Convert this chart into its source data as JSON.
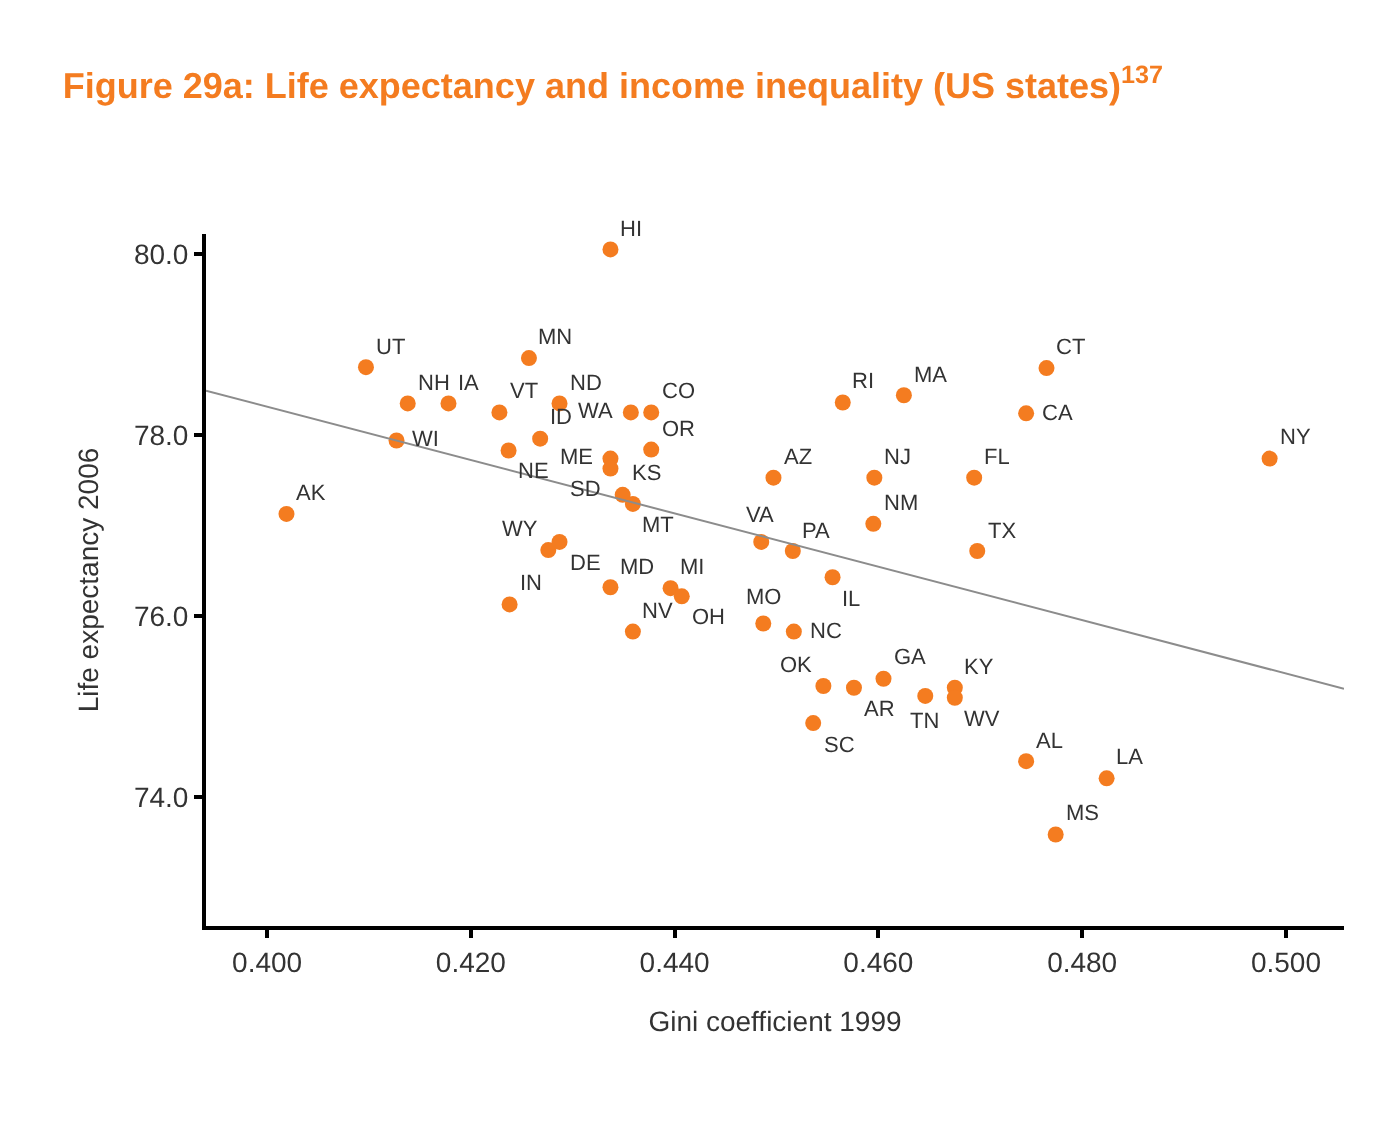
{
  "chart_data": {
    "type": "scatter",
    "title": "Figure 29a: Life expectancy and income inequality (US states)$^{137}$",
    "xlabel": "Gini coefficient 1999",
    "ylabel": "Life expectancy 2006",
    "xlim": [
      0.394,
      0.5057
    ],
    "ylim": [
      72.58,
      80.22
    ],
    "xticks": [
      {
        "value": 0.4,
        "label": "0.400"
      },
      {
        "value": 0.42,
        "label": "0.420"
      },
      {
        "value": 0.44,
        "label": "0.440"
      },
      {
        "value": 0.46,
        "label": "0.460"
      },
      {
        "value": 0.48,
        "label": "0.480"
      },
      {
        "value": 0.5,
        "label": "0.500"
      }
    ],
    "yticks": [
      {
        "value": 74,
        "label": "74.0"
      },
      {
        "value": 76,
        "label": "76.0"
      },
      {
        "value": 78,
        "label": "78.0"
      },
      {
        "value": 80,
        "label": "80.0"
      }
    ],
    "marker": "circle",
    "series": [
      {
        "color": "#f47c20",
        "x": [
          0.4337,
          0.4097,
          0.4257,
          0.4138,
          0.4178,
          0.4228,
          0.4287,
          0.4357,
          0.4377,
          0.4127,
          0.4268,
          0.4237,
          0.4377,
          0.4337,
          0.4337,
          0.4349,
          0.4359,
          0.4019,
          0.4276,
          0.4287,
          0.4337,
          0.4396,
          0.4407,
          0.4238,
          0.4359,
          0.4765,
          0.4745,
          0.4565,
          0.4625,
          0.4984,
          0.4497,
          0.4596,
          0.4694,
          0.4595,
          0.4485,
          0.4516,
          0.4697,
          0.4555,
          0.4487,
          0.4517,
          0.4546,
          0.4576,
          0.4605,
          0.4646,
          0.4675,
          0.4675,
          0.4536,
          0.4745,
          0.4824,
          0.4774
        ],
        "values": [
          80.05,
          78.75,
          78.85,
          78.35,
          78.35,
          78.25,
          78.35,
          78.25,
          78.25,
          77.94,
          77.96,
          77.83,
          77.84,
          77.74,
          77.63,
          77.34,
          77.24,
          77.13,
          76.73,
          76.82,
          76.32,
          76.31,
          76.22,
          76.13,
          75.83,
          78.74,
          78.24,
          78.36,
          78.44,
          77.74,
          77.53,
          77.53,
          77.53,
          77.02,
          76.82,
          76.72,
          76.72,
          76.43,
          75.92,
          75.83,
          75.23,
          75.21,
          75.31,
          75.12,
          75.21,
          75.1,
          74.82,
          74.4,
          74.21,
          73.59
        ]
      },
      {
        "type": "line",
        "marker": "none",
        "color": "#8c8c8c",
        "x": [
          0.394,
          0.5057
        ],
        "values": [
          78.49,
          75.2
        ]
      }
    ],
    "annotations": [
      {
        "text": "HI",
        "x": 0.4337,
        "y": 80.05
      },
      {
        "text": "UT",
        "x": 0.4097,
        "y": 78.75
      },
      {
        "text": "MN",
        "x": 0.4257,
        "y": 78.85
      },
      {
        "text": "NH",
        "x": 0.4138,
        "y": 78.35
      },
      {
        "text": "IA",
        "x": 0.4178,
        "y": 78.35
      },
      {
        "text": "VT",
        "x": 0.4228,
        "y": 78.25
      },
      {
        "text": "ND",
        "x": 0.4287,
        "y": 78.35
      },
      {
        "text": "WA",
        "x": 0.4357,
        "y": 78.25
      },
      {
        "text": "CO",
        "x": 0.4377,
        "y": 78.25
      },
      {
        "text": "WI",
        "x": 0.4127,
        "y": 77.94
      },
      {
        "text": "ID",
        "x": 0.4268,
        "y": 77.96
      },
      {
        "text": "NE",
        "x": 0.4237,
        "y": 77.83
      },
      {
        "text": "OR",
        "x": 0.4377,
        "y": 77.84
      },
      {
        "text": "ME",
        "x": 0.4337,
        "y": 77.74
      },
      {
        "text": "SD",
        "x": 0.4337,
        "y": 77.63
      },
      {
        "text": "KS",
        "x": 0.4349,
        "y": 77.34
      },
      {
        "text": "MT",
        "x": 0.4359,
        "y": 77.24
      },
      {
        "text": "AK",
        "x": 0.4019,
        "y": 77.13
      },
      {
        "text": "WY",
        "x": 0.4276,
        "y": 76.73
      },
      {
        "text": "DE",
        "x": 0.4287,
        "y": 76.82
      },
      {
        "text": "MD",
        "x": 0.4337,
        "y": 76.32
      },
      {
        "text": "MI",
        "x": 0.4396,
        "y": 76.31
      },
      {
        "text": "OH",
        "x": 0.4407,
        "y": 76.22
      },
      {
        "text": "IN",
        "x": 0.4238,
        "y": 76.13
      },
      {
        "text": "NV",
        "x": 0.4359,
        "y": 75.83
      },
      {
        "text": "CT",
        "x": 0.4765,
        "y": 78.74
      },
      {
        "text": "CA",
        "x": 0.4745,
        "y": 78.24
      },
      {
        "text": "RI",
        "x": 0.4565,
        "y": 78.36
      },
      {
        "text": "MA",
        "x": 0.4625,
        "y": 78.44
      },
      {
        "text": "NY",
        "x": 0.4984,
        "y": 77.74
      },
      {
        "text": "AZ",
        "x": 0.4497,
        "y": 77.53
      },
      {
        "text": "NJ",
        "x": 0.4596,
        "y": 77.53
      },
      {
        "text": "FL",
        "x": 0.4694,
        "y": 77.53
      },
      {
        "text": "NM",
        "x": 0.4595,
        "y": 77.02
      },
      {
        "text": "VA",
        "x": 0.4485,
        "y": 76.82
      },
      {
        "text": "PA",
        "x": 0.4516,
        "y": 76.72
      },
      {
        "text": "TX",
        "x": 0.4697,
        "y": 76.72
      },
      {
        "text": "IL",
        "x": 0.4555,
        "y": 76.43
      },
      {
        "text": "MO",
        "x": 0.4487,
        "y": 75.92
      },
      {
        "text": "NC",
        "x": 0.4517,
        "y": 75.83
      },
      {
        "text": "OK",
        "x": 0.4546,
        "y": 75.23
      },
      {
        "text": "AR",
        "x": 0.4576,
        "y": 75.21
      },
      {
        "text": "GA",
        "x": 0.4605,
        "y": 75.31
      },
      {
        "text": "TN",
        "x": 0.4646,
        "y": 75.12
      },
      {
        "text": "KY",
        "x": 0.4675,
        "y": 75.21
      },
      {
        "text": "WV",
        "x": 0.4675,
        "y": 75.1
      },
      {
        "text": "SC",
        "x": 0.4536,
        "y": 74.82
      },
      {
        "text": "AL",
        "x": 0.4745,
        "y": 74.4
      },
      {
        "text": "LA",
        "x": 0.4824,
        "y": 74.21
      },
      {
        "text": "MS",
        "x": 0.4774,
        "y": 73.59
      }
    ]
  }
}
